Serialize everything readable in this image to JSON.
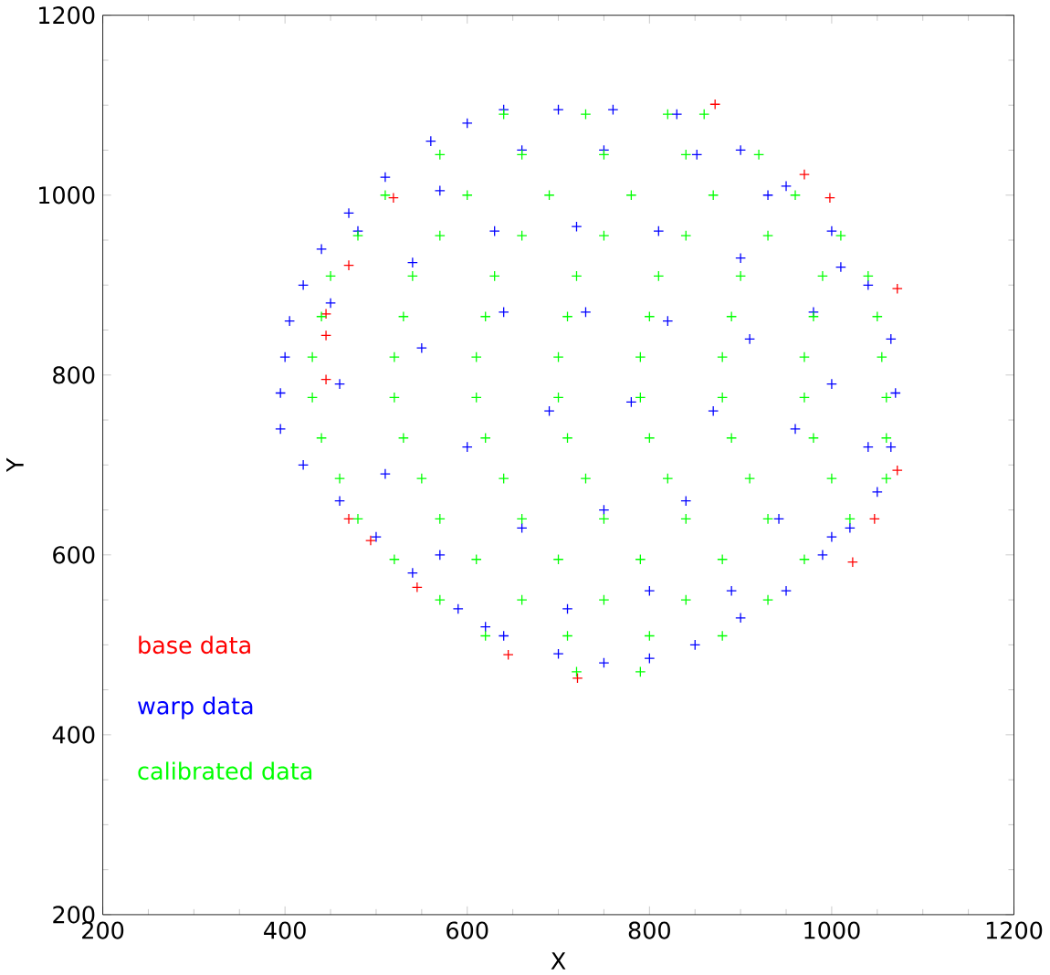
{
  "chart_data": {
    "type": "scatter",
    "xlabel": "X",
    "ylabel": "Y",
    "xlim": [
      200,
      1200
    ],
    "ylim": [
      200,
      1200
    ],
    "xticks": [
      200,
      400,
      600,
      800,
      1000,
      1200
    ],
    "yticks": [
      200,
      400,
      600,
      800,
      1000,
      1200
    ],
    "marker": "cross",
    "legend": "bottom left",
    "grid": false,
    "series": [
      {
        "name": "base data",
        "color": "#ff0000",
        "x": [
          872,
          970,
          998,
          1072,
          1072,
          1047,
          1023,
          519,
          470,
          445,
          445,
          445,
          470,
          494,
          545,
          645,
          721
        ],
        "values": [
          1101,
          1023,
          997,
          896,
          694,
          640,
          592,
          997,
          922,
          868,
          844,
          795,
          640,
          616,
          564,
          489,
          463
        ]
      },
      {
        "name": "warp data",
        "color": "#0000ff",
        "x": [
          395,
          395,
          400,
          405,
          420,
          440,
          470,
          510,
          560,
          600,
          640,
          700,
          760,
          830,
          900,
          950,
          1000,
          1040,
          1065,
          1070,
          1065,
          1050,
          1020,
          990,
          950,
          900,
          850,
          800,
          750,
          700,
          640,
          590,
          540,
          500,
          460,
          420,
          480,
          570,
          660,
          750,
          852,
          930,
          1010,
          450,
          540,
          630,
          720,
          810,
          900,
          980,
          460,
          550,
          640,
          730,
          820,
          910,
          1000,
          510,
          600,
          690,
          780,
          870,
          960,
          1040,
          570,
          660,
          750,
          840,
          942,
          1000,
          620,
          710,
          800,
          890
        ],
        "values": [
          740,
          780,
          820,
          860,
          900,
          940,
          980,
          1020,
          1060,
          1080,
          1095,
          1095,
          1095,
          1090,
          1050,
          1010,
          960,
          900,
          840,
          780,
          720,
          670,
          630,
          600,
          560,
          530,
          500,
          485,
          480,
          490,
          510,
          540,
          580,
          620,
          660,
          700,
          960,
          1005,
          1050,
          1050,
          1045,
          1000,
          920,
          880,
          925,
          960,
          965,
          960,
          930,
          870,
          790,
          830,
          870,
          870,
          860,
          840,
          790,
          690,
          720,
          760,
          770,
          760,
          740,
          720,
          600,
          630,
          650,
          660,
          640,
          620,
          520,
          540,
          560,
          560
        ]
      },
      {
        "name": "calibrated data",
        "color": "#00ff00",
        "x": [
          640,
          730,
          820,
          860,
          570,
          660,
          750,
          840,
          920,
          510,
          600,
          690,
          780,
          870,
          960,
          480,
          570,
          660,
          750,
          840,
          930,
          1010,
          450,
          540,
          630,
          720,
          810,
          900,
          990,
          1040,
          440,
          530,
          620,
          710,
          800,
          890,
          980,
          1050,
          430,
          520,
          610,
          700,
          790,
          880,
          970,
          1055,
          430,
          520,
          610,
          700,
          790,
          880,
          970,
          1060,
          440,
          530,
          620,
          710,
          800,
          890,
          980,
          1060,
          460,
          550,
          640,
          730,
          820,
          910,
          1000,
          1060,
          480,
          570,
          660,
          750,
          840,
          930,
          1020,
          520,
          610,
          700,
          790,
          880,
          970,
          570,
          660,
          750,
          840,
          930,
          620,
          710,
          800,
          880,
          720,
          790
        ],
        "values": [
          1090,
          1090,
          1090,
          1090,
          1045,
          1045,
          1045,
          1045,
          1045,
          1000,
          1000,
          1000,
          1000,
          1000,
          1000,
          955,
          955,
          955,
          955,
          955,
          955,
          955,
          910,
          910,
          910,
          910,
          910,
          910,
          910,
          910,
          865,
          865,
          865,
          865,
          865,
          865,
          865,
          865,
          820,
          820,
          820,
          820,
          820,
          820,
          820,
          820,
          775,
          775,
          775,
          775,
          775,
          775,
          775,
          775,
          730,
          730,
          730,
          730,
          730,
          730,
          730,
          730,
          685,
          685,
          685,
          685,
          685,
          685,
          685,
          685,
          640,
          640,
          640,
          640,
          640,
          640,
          640,
          595,
          595,
          595,
          595,
          595,
          595,
          550,
          550,
          550,
          550,
          550,
          510,
          510,
          510,
          510,
          470,
          470
        ]
      }
    ]
  }
}
